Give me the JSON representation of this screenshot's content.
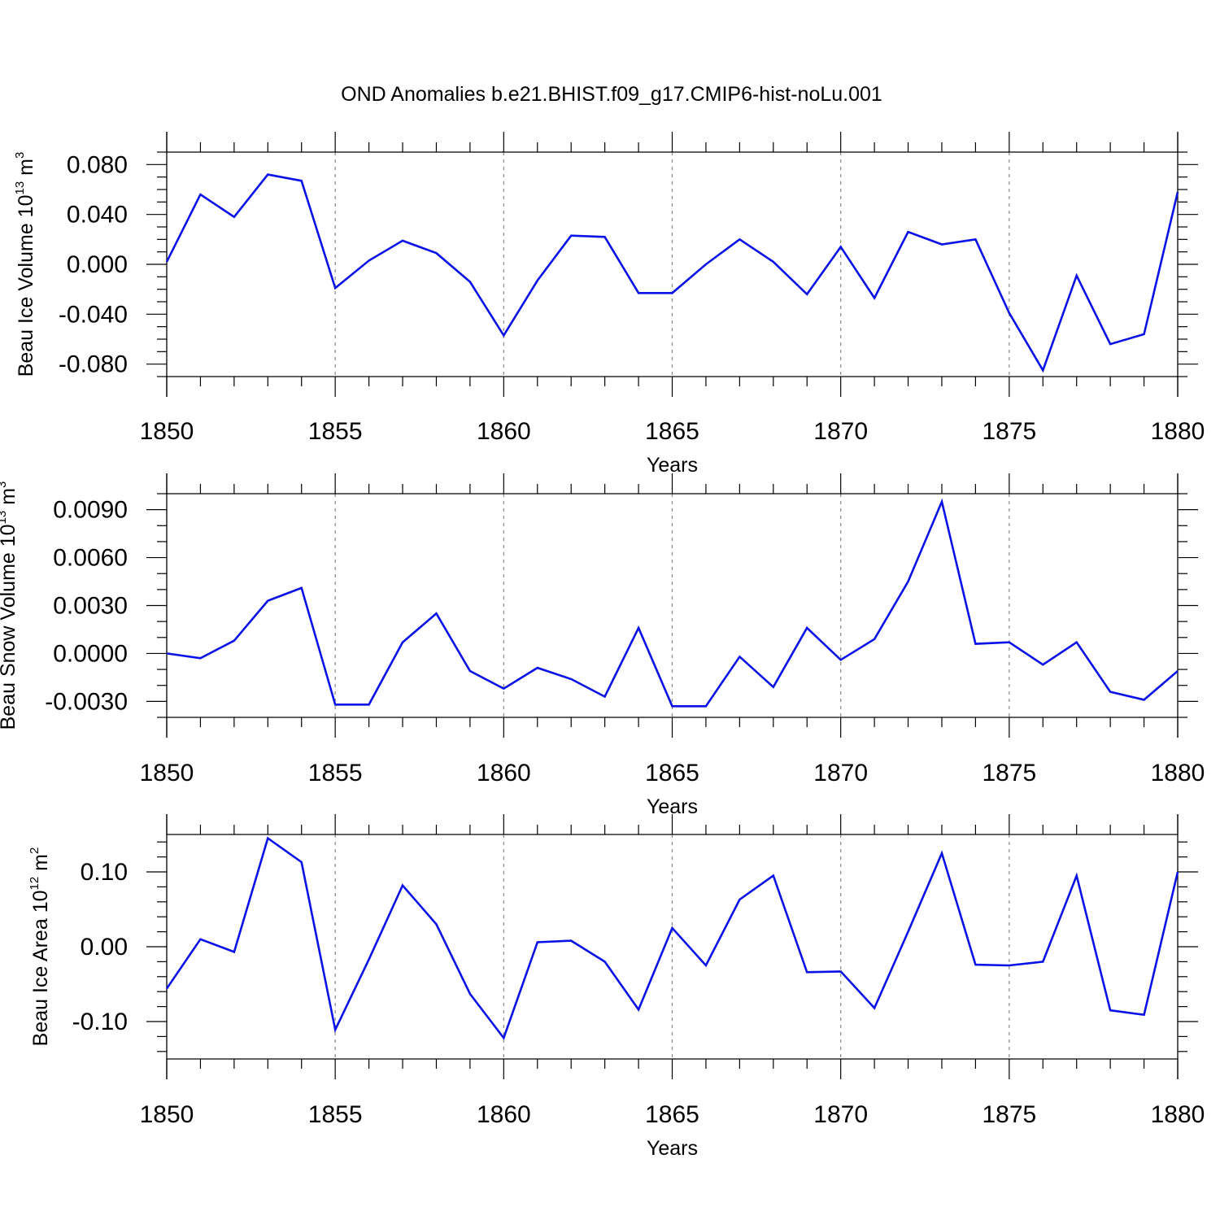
{
  "title": "OND Anomalies b.e21.BHIST.f09_g17.CMIP6-hist-noLu.001",
  "colors": {
    "line": "#0a12e8",
    "axis": "#000000",
    "grid": "#888888"
  },
  "chart_data": [
    {
      "type": "line",
      "ylabel": {
        "text": "Beau Ice Volume 10",
        "exp": "13",
        "unit": " m",
        "unit_exp": "3"
      },
      "xlabel": "Years",
      "xlim": [
        1850,
        1880
      ],
      "ylim": [
        -0.09,
        0.09
      ],
      "x_ticks": [
        "1850",
        "1855",
        "1860",
        "1865",
        "1870",
        "1875",
        "1880"
      ],
      "y_ticks": [
        {
          "value": 0.08,
          "label": "0.080"
        },
        {
          "value": 0.04,
          "label": "0.040"
        },
        {
          "value": 0.0,
          "label": "0.000"
        },
        {
          "value": -0.04,
          "label": "-0.040"
        },
        {
          "value": -0.08,
          "label": "-0.080"
        }
      ],
      "y_minor_step": 0.01,
      "grid": "x-dashed",
      "x": [
        1850,
        1851,
        1852,
        1853,
        1854,
        1855,
        1856,
        1857,
        1858,
        1859,
        1860,
        1861,
        1862,
        1863,
        1864,
        1865,
        1866,
        1867,
        1868,
        1869,
        1870,
        1871,
        1872,
        1873,
        1874,
        1875,
        1876,
        1877,
        1878,
        1879,
        1880
      ],
      "values": [
        0.002,
        0.056,
        0.038,
        0.072,
        0.067,
        -0.019,
        0.003,
        0.019,
        0.009,
        -0.014,
        -0.057,
        -0.013,
        0.023,
        0.022,
        -0.023,
        -0.023,
        0.0,
        0.02,
        0.002,
        -0.024,
        0.014,
        -0.027,
        0.026,
        0.016,
        0.02,
        -0.039,
        -0.085,
        -0.009,
        -0.064,
        -0.056,
        0.058
      ]
    },
    {
      "type": "line",
      "ylabel": {
        "text": "Beau Snow Volume 10",
        "exp": "13",
        "unit": " m",
        "unit_exp": "3"
      },
      "xlabel": "Years",
      "xlim": [
        1850,
        1880
      ],
      "ylim": [
        -0.004,
        0.01
      ],
      "x_ticks": [
        "1850",
        "1855",
        "1860",
        "1865",
        "1870",
        "1875",
        "1880"
      ],
      "y_ticks": [
        {
          "value": 0.009,
          "label": "0.0090"
        },
        {
          "value": 0.006,
          "label": "0.0060"
        },
        {
          "value": 0.003,
          "label": "0.0030"
        },
        {
          "value": 0.0,
          "label": "0.0000"
        },
        {
          "value": -0.003,
          "label": "-0.0030"
        }
      ],
      "y_minor_step": 0.001,
      "grid": "x-dashed",
      "x": [
        1850,
        1851,
        1852,
        1853,
        1854,
        1855,
        1856,
        1857,
        1858,
        1859,
        1860,
        1861,
        1862,
        1863,
        1864,
        1865,
        1866,
        1867,
        1868,
        1869,
        1870,
        1871,
        1872,
        1873,
        1874,
        1875,
        1876,
        1877,
        1878,
        1879,
        1880
      ],
      "values": [
        0.0,
        -0.0003,
        0.0008,
        0.0033,
        0.0041,
        -0.0032,
        -0.0032,
        0.0007,
        0.0025,
        -0.0011,
        -0.0022,
        -0.0009,
        -0.0016,
        -0.0027,
        0.0016,
        -0.0033,
        -0.0033,
        -0.0002,
        -0.0021,
        0.0016,
        -0.0004,
        0.0009,
        0.0045,
        0.0095,
        0.0006,
        0.0007,
        -0.0007,
        0.0007,
        -0.0024,
        -0.0029,
        -0.0011
      ]
    },
    {
      "type": "line",
      "ylabel": {
        "text": "Beau Ice Area 10",
        "exp": "12",
        "unit": " m",
        "unit_exp": "2"
      },
      "xlabel": "Years",
      "xlim": [
        1850,
        1880
      ],
      "ylim": [
        -0.15,
        0.15
      ],
      "x_ticks": [
        "1850",
        "1855",
        "1860",
        "1865",
        "1870",
        "1875",
        "1880"
      ],
      "y_ticks": [
        {
          "value": 0.1,
          "label": "0.10"
        },
        {
          "value": 0.0,
          "label": "0.00"
        },
        {
          "value": -0.1,
          "label": "-0.10"
        }
      ],
      "y_minor_step": 0.02,
      "grid": "x-dashed",
      "x": [
        1850,
        1851,
        1852,
        1853,
        1854,
        1855,
        1856,
        1857,
        1858,
        1859,
        1860,
        1861,
        1862,
        1863,
        1864,
        1865,
        1866,
        1867,
        1868,
        1869,
        1870,
        1871,
        1872,
        1873,
        1874,
        1875,
        1876,
        1877,
        1878,
        1879,
        1880
      ],
      "values": [
        -0.056,
        0.01,
        -0.007,
        0.145,
        0.113,
        -0.111,
        -0.017,
        0.082,
        0.03,
        -0.063,
        -0.122,
        0.006,
        0.008,
        -0.02,
        -0.084,
        0.025,
        -0.025,
        0.063,
        0.095,
        -0.034,
        -0.033,
        -0.082,
        0.02,
        0.125,
        -0.024,
        -0.025,
        -0.02,
        0.095,
        -0.085,
        -0.091,
        0.1
      ]
    }
  ]
}
